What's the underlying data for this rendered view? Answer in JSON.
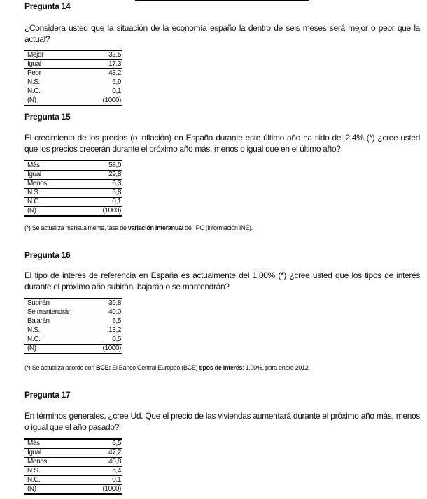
{
  "questions": [
    {
      "title": "Pregunta 14",
      "text": "¿Considera usted que la situación de la economía españo la dentro de seis meses será mejor o peor que la actual?",
      "rows": [
        [
          "Mejor",
          "32,5"
        ],
        [
          "Igual",
          "17,3"
        ],
        [
          "Peor",
          "43,2"
        ],
        [
          "N.S.",
          "6,9"
        ],
        [
          "N.C.",
          "0,1"
        ],
        [
          "(N)",
          "(1000)"
        ]
      ]
    },
    {
      "title": "Pregunta 15",
      "text": "El crecimiento de los precios (o inflación) en España durante este último año ha sido del 2,4% (*) ¿cree usted que los precios crecerán durante el próximo año más, menos o igual que en el último año?",
      "rows": [
        [
          "Más",
          "58,0"
        ],
        [
          "Igual",
          "29,8"
        ],
        [
          "Menos",
          "6,3"
        ],
        [
          "N.S.",
          "5,8"
        ],
        [
          "N.C.",
          "0,1"
        ],
        [
          "(N)",
          "(1000)"
        ]
      ],
      "note": {
        "a": "(*) Se actualiza mensualmente, tasa de ",
        "b": "variación interanual",
        "c": " del IPC (información INE)."
      }
    },
    {
      "title": "Pregunta 16",
      "text": "El tipo de interés de referencia en España es actualmente del 1,00% (*) ¿cree usted que los tipos de interés durante el próximo año subirán, bajarán o se mantendrán?",
      "rows": [
        [
          "Subirán",
          "39,8"
        ],
        [
          "Se mantendrán",
          "40,0"
        ],
        [
          "Bajarán",
          "6,5"
        ],
        [
          "N.S.",
          "13,2"
        ],
        [
          "N.C.",
          "0,5"
        ],
        [
          "(N)",
          "(1000)"
        ]
      ],
      "note": {
        "a": "(*) Se actualiza acorde con ",
        "b": "BCE:",
        "c": " El Banco Central Europeo (BCE) ",
        "d": "tipos de interés",
        "e": ": 1,00%, para enero 2012."
      }
    },
    {
      "title": "Pregunta 17",
      "text": "En términos generales, ¿cree Ud. Que el precio de las viviendas aumentará durante el próximo año más, menos o igual que el año pasado?",
      "rows": [
        [
          "Más",
          "6,5"
        ],
        [
          "Igual",
          "47,2"
        ],
        [
          "Menos",
          "40,8"
        ],
        [
          "N.S.",
          "5,4"
        ],
        [
          "N.C.",
          "0,1"
        ],
        [
          "(N)",
          "(1000)"
        ]
      ]
    }
  ]
}
